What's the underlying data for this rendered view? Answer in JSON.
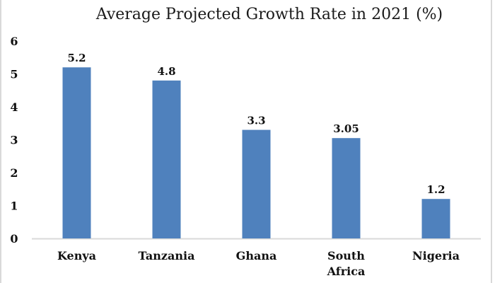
{
  "chart_data": {
    "type": "bar",
    "title": "Average Projected Growth Rate in 2021 (%)",
    "xlabel": "",
    "ylabel": "",
    "categories": [
      "Kenya",
      "Tanzania",
      "Ghana",
      "South Africa",
      "Nigeria"
    ],
    "category_lines": [
      [
        "Kenya"
      ],
      [
        "Tanzania"
      ],
      [
        "Ghana"
      ],
      [
        "South",
        "Africa"
      ],
      [
        "Nigeria"
      ]
    ],
    "values": [
      5.2,
      4.8,
      3.3,
      3.05,
      1.2
    ],
    "data_labels": [
      "5.2",
      "4.8",
      "3.3",
      "3.05",
      "1.2"
    ],
    "ylim": [
      0,
      6
    ],
    "yticks": [
      0,
      1,
      2,
      3,
      4,
      5,
      6
    ],
    "grid": false,
    "legend": "none",
    "bar_color": "#4F81BD",
    "axis_color": "#d9d9d9"
  }
}
